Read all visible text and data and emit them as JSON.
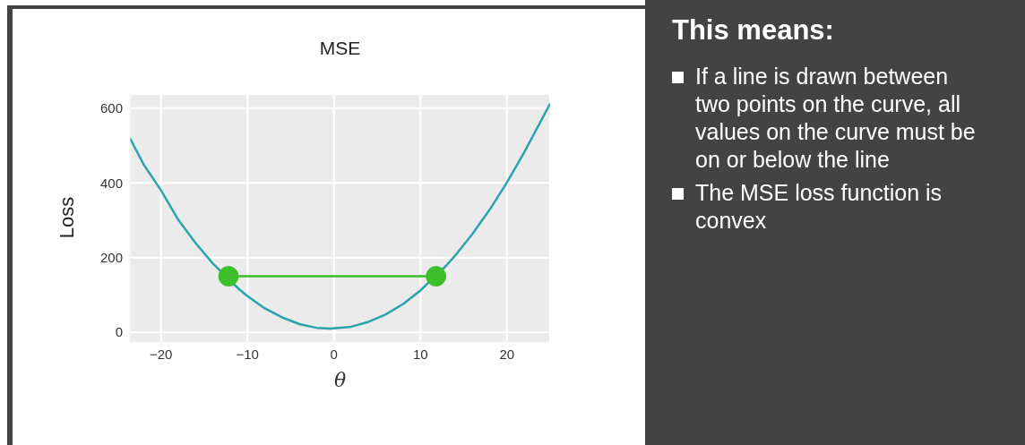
{
  "chart_data": [
    {
      "type": "line",
      "title": "MSE",
      "xlabel": "θ",
      "ylabel": "Loss",
      "xlim": [
        -23.6,
        25
      ],
      "ylim": [
        -26,
        638
      ],
      "xticks": [
        -20,
        -10,
        0,
        10,
        20
      ],
      "yticks": [
        0,
        200,
        400,
        600
      ],
      "grid": true,
      "marker": "none",
      "line_style": "solid",
      "series": [
        {
          "color": "#2aa3ad",
          "x": [
            -23.6,
            -22,
            -20,
            -18,
            -16,
            -14,
            -11,
            -10,
            -8,
            -6,
            -4,
            -2,
            -0.4,
            2,
            4,
            6,
            8,
            10,
            13,
            14,
            16,
            18,
            20,
            22,
            25
          ],
          "values": [
            520,
            449,
            380,
            301,
            239,
            184,
            116,
            97,
            64,
            40,
            22,
            12,
            10,
            15,
            28,
            48,
            76,
            112,
            179,
            205,
            263,
            328,
            401,
            482,
            612
          ]
        },
        {
          "color": "#3dbf2b",
          "marker": "circle",
          "x": [
            -12.2,
            11.8
          ],
          "values": [
            150,
            150
          ]
        }
      ]
    },
    {
      "type": "other",
      "title": "This means:",
      "annotations": [
        "If a line is drawn between two points on the curve, all values on the curve must be on or below the line",
        "The MSE loss function is convex"
      ]
    }
  ]
}
